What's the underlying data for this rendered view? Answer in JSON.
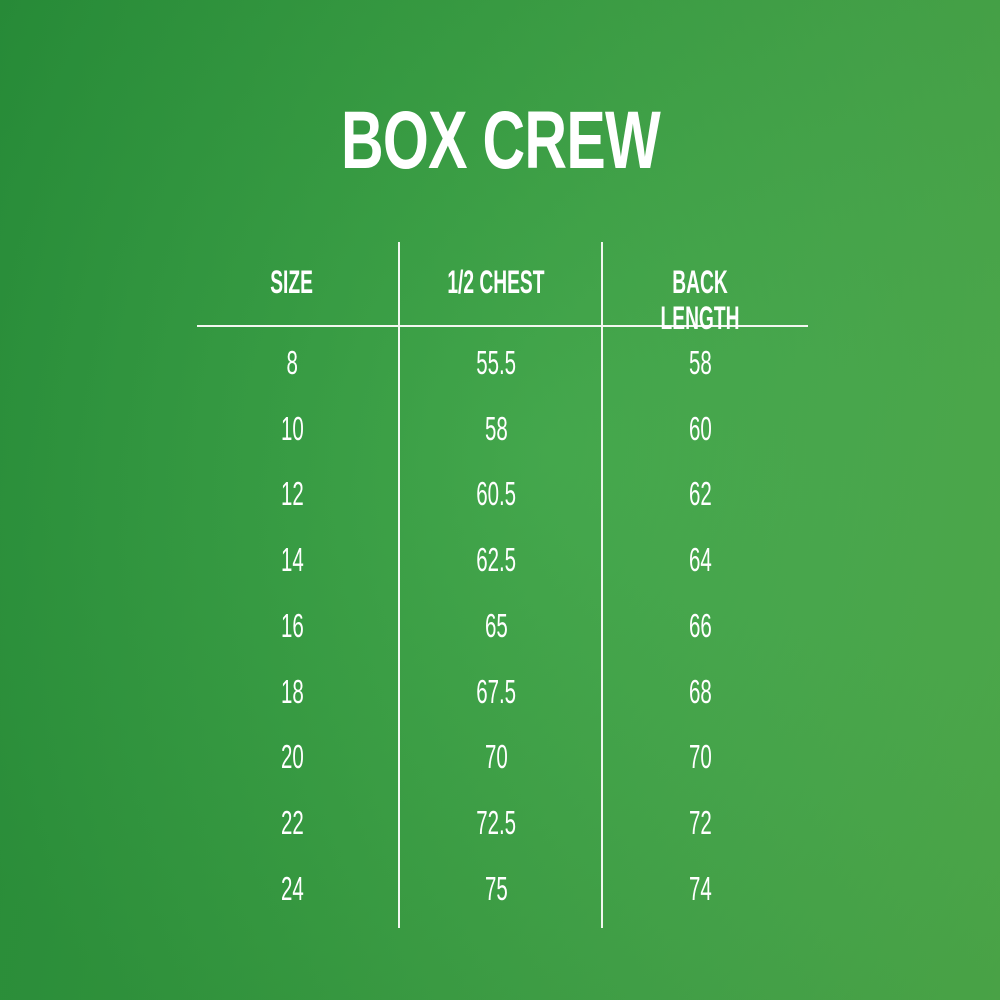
{
  "title": "BOX CREW",
  "colors": {
    "background_left": "#2a963c",
    "background_right": "#4fb04c",
    "text": "#ffffff"
  },
  "table": {
    "headers": [
      "SIZE",
      "1/2 CHEST",
      "BACK LENGTH"
    ],
    "rows": [
      [
        "8",
        "55.5",
        "58"
      ],
      [
        "10",
        "58",
        "60"
      ],
      [
        "12",
        "60.5",
        "62"
      ],
      [
        "14",
        "62.5",
        "64"
      ],
      [
        "16",
        "65",
        "66"
      ],
      [
        "18",
        "67.5",
        "68"
      ],
      [
        "20",
        "70",
        "70"
      ],
      [
        "22",
        "72.5",
        "72"
      ],
      [
        "24",
        "75",
        "74"
      ]
    ]
  }
}
